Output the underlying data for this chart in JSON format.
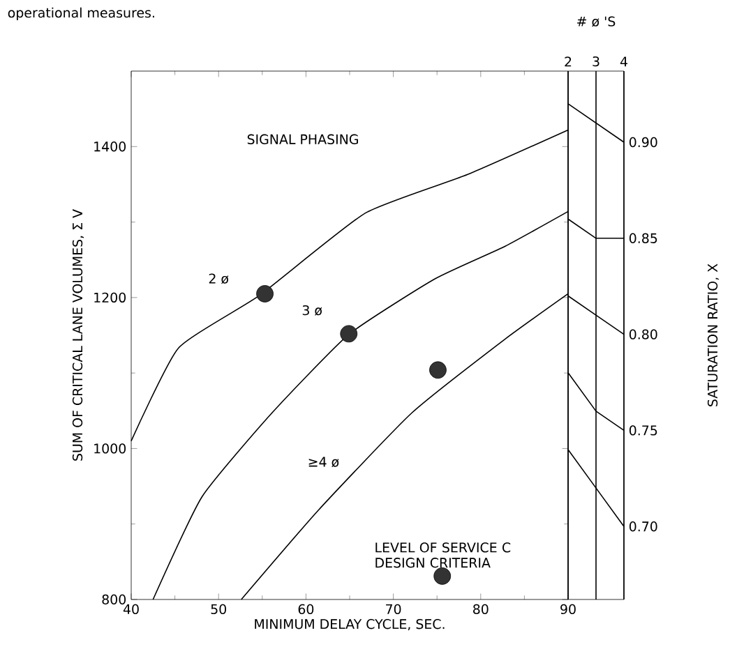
{
  "chart_data": [
    {
      "type": "line",
      "xlabel": "MINIMUM DELAY CYCLE, SEC.",
      "ylabel": "SUM OF CRITICAL LANE VOLUMES, Σ V",
      "xlim": [
        40,
        90
      ],
      "ylim": [
        800,
        1500
      ],
      "xticks": [
        40,
        50,
        60,
        70,
        80,
        90
      ],
      "yticks": [
        800,
        1000,
        1200,
        1400
      ],
      "annotations": [
        "operational measures.",
        "SIGNAL PHASING",
        "LEVEL OF SERVICE C DESIGN CRITERIA"
      ],
      "series": [
        {
          "name": "2 ø",
          "color": "#000000",
          "x": [
            40,
            45.4,
            54.7,
            66.8,
            78.5,
            90
          ],
          "values": [
            1010,
            1133,
            1203,
            1312,
            1363,
            1422
          ]
        },
        {
          "name": "3 ø",
          "color": "#000000",
          "x": [
            42.5,
            48.1,
            56.1,
            64.9,
            74.8,
            82.8,
            90
          ],
          "values": [
            800,
            936,
            1047,
            1151,
            1225,
            1268,
            1314
          ]
        },
        {
          "name": "≥4 ø",
          "color": "#000000",
          "x": [
            52.6,
            61.4,
            72.1,
            82.8,
            90
          ],
          "values": [
            800,
            918,
            1047,
            1145,
            1205
          ]
        },
        {
          "type": "scatter",
          "color": "#333333",
          "marker": "circle",
          "x": [
            55.3,
            64.9,
            75.1,
            75.6
          ],
          "values": [
            1205,
            1152,
            1104,
            831
          ]
        }
      ]
    },
    {
      "type": "line",
      "xlabel": "# ø 'S",
      "y2label": "SATURATION RATIO, X",
      "categories": [
        "2",
        "3",
        "4"
      ],
      "y2lim": [
        0.662,
        0.937
      ],
      "grid": "x",
      "y2ticks": [
        {
          "value": 0.9,
          "label": "0.90"
        },
        {
          "value": 0.85,
          "label": "0.85"
        },
        {
          "value": 0.8,
          "label": "0.80"
        },
        {
          "value": 0.75,
          "label": "0.75"
        },
        {
          "value": 0.7,
          "label": "0.70"
        }
      ],
      "series": [
        {
          "color": "#000000",
          "axis": "y2",
          "values": [
            0.92,
            0.91,
            0.9
          ]
        },
        {
          "color": "#000000",
          "axis": "y2",
          "values": [
            0.86,
            0.85,
            0.85
          ]
        },
        {
          "color": "#000000",
          "axis": "y2",
          "values": [
            0.82,
            0.81,
            0.8
          ]
        },
        {
          "color": "#000000",
          "axis": "y2",
          "values": [
            0.78,
            0.76,
            0.75
          ]
        },
        {
          "color": "#000000",
          "axis": "y2",
          "values": [
            0.74,
            0.72,
            0.7
          ]
        }
      ]
    }
  ]
}
